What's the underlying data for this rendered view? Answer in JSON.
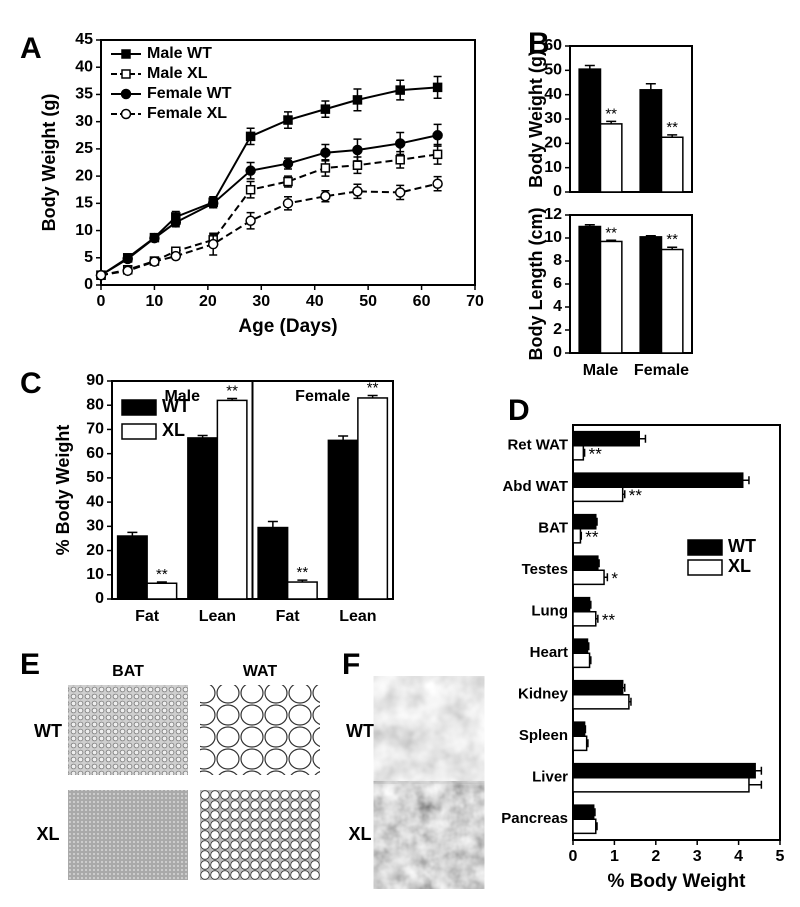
{
  "chart_data": [
    {
      "type": "line",
      "panel": "A",
      "xlabel": "Age (Days)",
      "ylabel": "Body Weight (g)",
      "x": [
        0,
        5,
        10,
        14,
        21,
        28,
        35,
        42,
        48,
        56,
        63
      ],
      "xlim": [
        0,
        70
      ],
      "xticks": [
        0,
        10,
        20,
        30,
        40,
        50,
        60,
        70
      ],
      "ylim": [
        0,
        45
      ],
      "yticks": [
        0,
        5,
        10,
        15,
        20,
        25,
        30,
        35,
        40,
        45
      ],
      "legend": "upper left",
      "series": [
        {
          "name": "Male WT",
          "color": "#000000",
          "marker": "square",
          "filled": true,
          "dash": false,
          "values": [
            1.8,
            5,
            8.7,
            12.5,
            15.2,
            27.3,
            30.3,
            32.3,
            34,
            35.8,
            36.3
          ],
          "errors": [
            0.3,
            0.6,
            0.5,
            1,
            1,
            1.5,
            1.5,
            1.5,
            2,
            1.8,
            2
          ]
        },
        {
          "name": "Male XL",
          "color": "#000000",
          "marker": "square",
          "filled": false,
          "dash": true,
          "values": [
            1.8,
            2.8,
            4.4,
            6.2,
            8.3,
            17.5,
            19,
            21.5,
            22,
            23,
            24
          ],
          "errors": [
            0.3,
            0.5,
            0.5,
            0.6,
            1,
            1.5,
            1,
            1.5,
            1.5,
            1.5,
            1.8
          ]
        },
        {
          "name": "Female WT",
          "color": "#000000",
          "marker": "circle",
          "filled": true,
          "dash": false,
          "values": [
            1.8,
            4.8,
            8.6,
            11.5,
            15,
            21,
            22.3,
            24.3,
            24.8,
            26,
            27.5
          ],
          "errors": [
            0.3,
            0.6,
            0.5,
            0.8,
            0.8,
            1.5,
            1,
            1.5,
            2,
            2,
            2
          ]
        },
        {
          "name": "Female  XL",
          "color": "#000000",
          "marker": "circle",
          "filled": false,
          "dash": true,
          "values": [
            1.8,
            2.6,
            4.3,
            5.3,
            7.5,
            11.8,
            15,
            16.3,
            17.2,
            17,
            18.6
          ],
          "errors": [
            0.3,
            0.5,
            0.5,
            0.5,
            2,
            1.5,
            1.2,
            1,
            1.3,
            1.3,
            1.3
          ]
        }
      ]
    },
    {
      "type": "bar",
      "panel": "B",
      "ylabel": "Body Weight (g)",
      "categories": [
        null,
        null
      ],
      "ylim": [
        0,
        60
      ],
      "yticks": [
        0,
        10,
        20,
        30,
        40,
        50,
        60
      ],
      "series": [
        {
          "color": "#000000",
          "values": [
            50.5,
            42
          ],
          "errors": [
            1.5,
            2.5
          ],
          "annotations": [
            null,
            null
          ]
        },
        {
          "color": "#ffffff",
          "values": [
            28,
            22.5
          ],
          "errors": [
            1,
            1
          ],
          "annotations": [
            "**",
            "**"
          ]
        }
      ]
    },
    {
      "type": "bar",
      "ylabel": "Body Length (cm)",
      "categories": [
        "Male",
        "Female"
      ],
      "ylim": [
        0,
        12
      ],
      "yticks": [
        0,
        2,
        4,
        6,
        8,
        10,
        12
      ],
      "series": [
        {
          "color": "#000000",
          "values": [
            11,
            10.1
          ],
          "errors": [
            0.15,
            0.1
          ],
          "annotations": [
            null,
            null
          ]
        },
        {
          "color": "#ffffff",
          "values": [
            9.7,
            9
          ],
          "errors": [
            0.1,
            0.2
          ],
          "annotations": [
            "**",
            "**"
          ]
        }
      ]
    },
    {
      "type": "bar",
      "panel": "C",
      "ylabel": "% Body Weight",
      "groups": [
        "Male",
        "Female"
      ],
      "categories": [
        "Fat",
        "Lean",
        "Fat",
        "Lean"
      ],
      "ylim": [
        0,
        90
      ],
      "yticks": [
        0,
        10,
        20,
        30,
        40,
        50,
        60,
        70,
        80,
        90
      ],
      "legend": "upper left",
      "series": [
        {
          "name": "WT",
          "color": "#000000",
          "values": [
            26,
            66.5,
            29.5,
            65.5
          ],
          "errors": [
            1.5,
            1,
            2.5,
            1.8
          ],
          "annotations": [
            null,
            null,
            null,
            null
          ]
        },
        {
          "name": "XL",
          "color": "#ffffff",
          "values": [
            6.5,
            82,
            7,
            83
          ],
          "errors": [
            0.5,
            0.8,
            0.8,
            1
          ],
          "annotations": [
            "**",
            "**",
            "**",
            "**"
          ]
        }
      ]
    },
    {
      "type": "barh",
      "panel": "D",
      "xlabel": "% Body Weight",
      "categories": [
        "Ret WAT",
        "Abd WAT",
        "BAT",
        "Testes",
        "Lung",
        "Heart",
        "Kidney",
        "Spleen",
        "Liver",
        "Pancreas"
      ],
      "xlim": [
        0,
        5
      ],
      "xticks": [
        0,
        1,
        2,
        3,
        4,
        5
      ],
      "legend": "upper right",
      "series": [
        {
          "name": "WT",
          "color": "#000000",
          "values": [
            1.6,
            4.1,
            0.55,
            0.6,
            0.4,
            0.35,
            1.2,
            0.28,
            4.4,
            0.5
          ],
          "errors": [
            0.15,
            0.15,
            0.03,
            0.03,
            0.03,
            0.03,
            0.05,
            0.02,
            0.15,
            0.03
          ],
          "annotations": [
            null,
            null,
            null,
            null,
            null,
            null,
            null,
            null,
            null,
            null
          ]
        },
        {
          "name": "XL",
          "color": "#ffffff",
          "values": [
            0.25,
            1.2,
            0.18,
            0.75,
            0.55,
            0.4,
            1.35,
            0.33,
            4.25,
            0.55
          ],
          "errors": [
            0.03,
            0.05,
            0.02,
            0.08,
            0.05,
            0.03,
            0.05,
            0.03,
            0.3,
            0.03
          ],
          "annotations": [
            "**",
            "**",
            "**",
            "*",
            "**",
            null,
            null,
            null,
            null,
            null
          ]
        }
      ]
    }
  ],
  "image_panels": [
    {
      "panel": "E",
      "columns": [
        "BAT",
        "WAT"
      ],
      "rows": [
        "WT",
        "XL"
      ]
    },
    {
      "panel": "F",
      "rows": [
        "WT",
        "XL"
      ]
    }
  ]
}
